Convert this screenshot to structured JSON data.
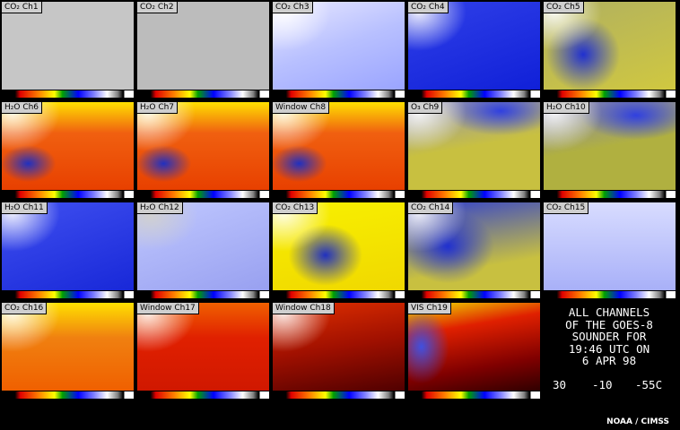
{
  "panels": [
    {
      "label": "CO₂ Ch1"
    },
    {
      "label": "CO₂ Ch2"
    },
    {
      "label": "CO₂ Ch3"
    },
    {
      "label": "CO₂ Ch4"
    },
    {
      "label": "CO₂ Ch5"
    },
    {
      "label": "H₂O Ch6"
    },
    {
      "label": "H₂O Ch7"
    },
    {
      "label": "Window Ch8"
    },
    {
      "label": "O₃ Ch9"
    },
    {
      "label": "H₂O Ch10"
    },
    {
      "label": "H₂O Ch11"
    },
    {
      "label": "H₂O Ch12"
    },
    {
      "label": "CO₂ Ch13"
    },
    {
      "label": "CO₂ Ch14"
    },
    {
      "label": "CO₂ Ch15"
    },
    {
      "label": "CO₂ Ch16"
    },
    {
      "label": "Window Ch17"
    },
    {
      "label": "Window Ch18"
    },
    {
      "label": "VIS Ch19"
    }
  ],
  "info": {
    "lines": [
      "ALL CHANNELS",
      "OF THE GOES-8",
      "SOUNDER FOR",
      "19:46 UTC ON",
      "6 APR 98"
    ],
    "scale": [
      "30",
      "-10",
      "-55C"
    ]
  },
  "credit": "NOAA / CIMSS"
}
